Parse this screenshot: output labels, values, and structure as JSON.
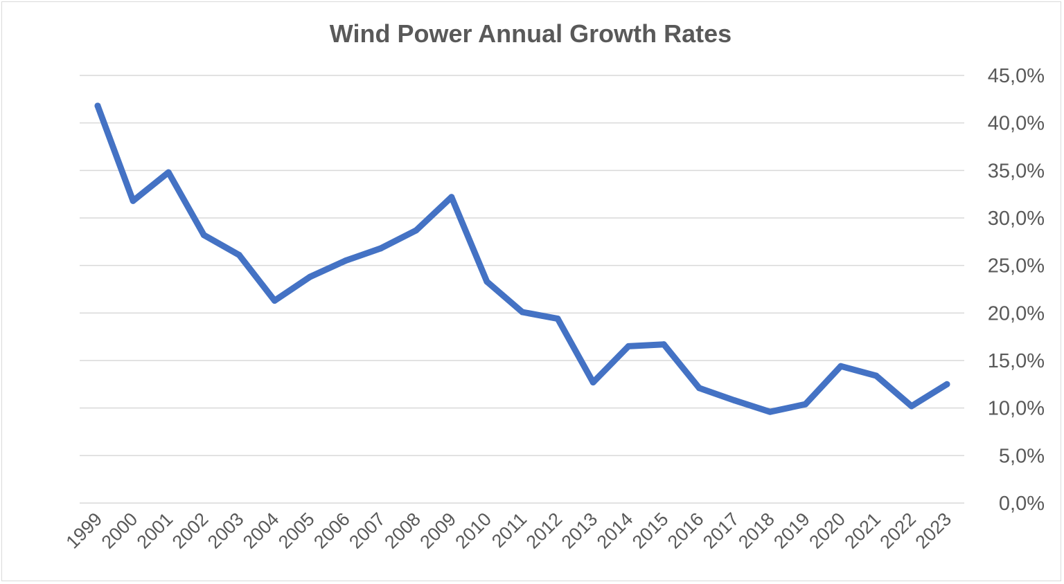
{
  "chart_data": {
    "type": "line",
    "title": "Wind Power Annual Growth Rates",
    "xlabel": "",
    "ylabel": "",
    "categories": [
      "1999",
      "2000",
      "2001",
      "2002",
      "2003",
      "2004",
      "2005",
      "2006",
      "2007",
      "2008",
      "2009",
      "2010",
      "2011",
      "2012",
      "2013",
      "2014",
      "2015",
      "2016",
      "2017",
      "2018",
      "2019",
      "2020",
      "2021",
      "2022",
      "2023"
    ],
    "series": [
      {
        "values": [
          41.8,
          31.8,
          34.8,
          28.2,
          26.1,
          21.3,
          23.8,
          25.5,
          26.8,
          28.7,
          32.2,
          23.3,
          20.1,
          19.4,
          12.7,
          16.5,
          16.7,
          12.1,
          10.8,
          9.6,
          10.4,
          14.4,
          13.4,
          10.2,
          12.5
        ],
        "color": "#4472c4"
      }
    ],
    "ylim": [
      0,
      45
    ],
    "yticks": [
      "0,0%",
      "5,0%",
      "10,0%",
      "15,0%",
      "20,0%",
      "25,0%",
      "30,0%",
      "35,0%",
      "40,0%",
      "45,0%"
    ],
    "y_axis_side": "right",
    "grid": true,
    "legend": "none"
  }
}
